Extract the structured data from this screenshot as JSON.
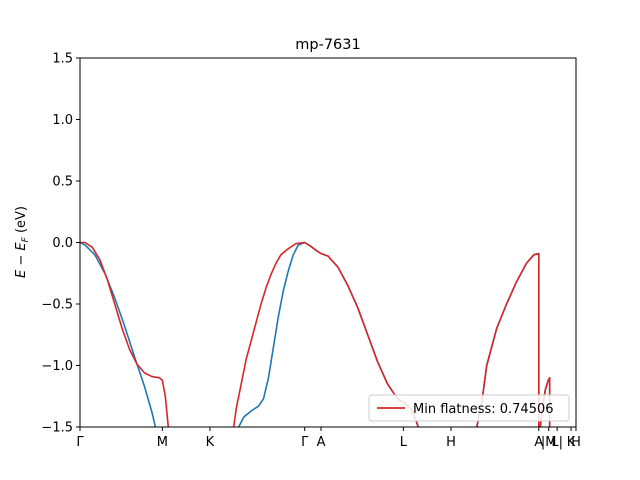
{
  "chart_data": {
    "type": "line",
    "title": "mp-7631",
    "ylabel": "E − E_F (eV)",
    "ylim": [
      -1.5,
      1.5
    ],
    "yticks": [
      1.5,
      1.0,
      0.5,
      0.0,
      -0.5,
      -1.0,
      -1.5
    ],
    "ytick_labels": [
      "1.5",
      "1.0",
      "0.5",
      "0.0",
      "−0.5",
      "−1.0",
      "−1.5"
    ],
    "xlim": [
      0,
      1
    ],
    "kpoints": [
      {
        "label": "Γ",
        "x": 0.0
      },
      {
        "label": "M",
        "x": 0.166
      },
      {
        "label": "K",
        "x": 0.262
      },
      {
        "label": "Γ",
        "x": 0.453
      },
      {
        "label": "A",
        "x": 0.486
      },
      {
        "label": "L",
        "x": 0.652
      },
      {
        "label": "H",
        "x": 0.748
      },
      {
        "label": "A",
        "x": 0.925
      },
      {
        "label": "|M",
        "x": 0.945
      },
      {
        "label": "L|",
        "x": 0.962
      },
      {
        "label": "K",
        "x": 0.99
      },
      {
        "label": "H",
        "x": 1.0
      }
    ],
    "legend": {
      "text": "Min flatness: 0.74506",
      "position": "lower-right"
    },
    "series": [
      {
        "color": "#1f77b4",
        "segments": [
          [
            [
              0.0,
              0.0
            ],
            [
              0.01,
              -0.02
            ],
            [
              0.03,
              -0.1
            ],
            [
              0.05,
              -0.25
            ],
            [
              0.07,
              -0.45
            ],
            [
              0.09,
              -0.68
            ],
            [
              0.11,
              -0.93
            ],
            [
              0.13,
              -1.17
            ],
            [
              0.145,
              -1.38
            ],
            [
              0.152,
              -1.5
            ]
          ],
          [
            [
              0.32,
              -1.5
            ],
            [
              0.33,
              -1.42
            ],
            [
              0.345,
              -1.37
            ],
            [
              0.36,
              -1.33
            ],
            [
              0.37,
              -1.27
            ],
            [
              0.38,
              -1.1
            ],
            [
              0.39,
              -0.85
            ],
            [
              0.4,
              -0.6
            ],
            [
              0.41,
              -0.39
            ],
            [
              0.42,
              -0.23
            ],
            [
              0.43,
              -0.1
            ],
            [
              0.44,
              -0.02
            ],
            [
              0.453,
              0.0
            ],
            [
              0.465,
              -0.03
            ],
            [
              0.478,
              -0.07
            ],
            [
              0.486,
              -0.09
            ]
          ],
          [
            [
              0.486,
              -0.09
            ],
            [
              0.5,
              -0.11
            ],
            [
              0.52,
              -0.2
            ],
            [
              0.54,
              -0.35
            ],
            [
              0.56,
              -0.53
            ],
            [
              0.58,
              -0.75
            ],
            [
              0.6,
              -0.97
            ],
            [
              0.62,
              -1.15
            ],
            [
              0.64,
              -1.27
            ],
            [
              0.652,
              -1.3
            ],
            [
              0.665,
              -1.34
            ],
            [
              0.675,
              -1.42
            ],
            [
              0.682,
              -1.5
            ]
          ],
          [
            [
              0.8,
              -1.5
            ],
            [
              0.81,
              -1.3
            ],
            [
              0.82,
              -1.0
            ],
            [
              0.84,
              -0.7
            ],
            [
              0.86,
              -0.5
            ],
            [
              0.88,
              -0.32
            ],
            [
              0.9,
              -0.17
            ],
            [
              0.915,
              -0.1
            ],
            [
              0.925,
              -0.09
            ],
            [
              0.925,
              -1.5
            ]
          ],
          [
            [
              0.928,
              -1.5
            ],
            [
              0.932,
              -1.35
            ],
            [
              0.938,
              -1.2
            ],
            [
              0.944,
              -1.12
            ],
            [
              0.947,
              -1.1
            ],
            [
              0.947,
              -1.5
            ]
          ]
        ]
      },
      {
        "color": "#d62728",
        "segments": [
          [
            [
              0.0,
              0.0
            ],
            [
              0.01,
              0.0
            ],
            [
              0.025,
              -0.04
            ],
            [
              0.04,
              -0.14
            ],
            [
              0.055,
              -0.3
            ],
            [
              0.07,
              -0.5
            ],
            [
              0.085,
              -0.7
            ],
            [
              0.1,
              -0.87
            ],
            [
              0.115,
              -0.99
            ],
            [
              0.13,
              -1.06
            ],
            [
              0.145,
              -1.09
            ],
            [
              0.16,
              -1.1
            ],
            [
              0.166,
              -1.12
            ],
            [
              0.172,
              -1.25
            ],
            [
              0.178,
              -1.5
            ]
          ],
          [
            [
              0.31,
              -1.5
            ],
            [
              0.315,
              -1.35
            ],
            [
              0.325,
              -1.15
            ],
            [
              0.335,
              -0.95
            ],
            [
              0.345,
              -0.8
            ],
            [
              0.355,
              -0.65
            ],
            [
              0.365,
              -0.5
            ],
            [
              0.375,
              -0.37
            ],
            [
              0.385,
              -0.26
            ],
            [
              0.395,
              -0.17
            ],
            [
              0.405,
              -0.1
            ],
            [
              0.42,
              -0.05
            ],
            [
              0.435,
              -0.01
            ],
            [
              0.453,
              0.0
            ],
            [
              0.465,
              -0.03
            ],
            [
              0.478,
              -0.07
            ],
            [
              0.486,
              -0.09
            ]
          ],
          [
            [
              0.486,
              -0.09
            ],
            [
              0.5,
              -0.11
            ],
            [
              0.52,
              -0.2
            ],
            [
              0.54,
              -0.35
            ],
            [
              0.56,
              -0.53
            ],
            [
              0.58,
              -0.75
            ],
            [
              0.6,
              -0.97
            ],
            [
              0.62,
              -1.15
            ],
            [
              0.64,
              -1.27
            ],
            [
              0.652,
              -1.3
            ],
            [
              0.665,
              -1.34
            ],
            [
              0.675,
              -1.42
            ],
            [
              0.682,
              -1.5
            ]
          ],
          [
            [
              0.8,
              -1.5
            ],
            [
              0.81,
              -1.3
            ],
            [
              0.82,
              -1.0
            ],
            [
              0.84,
              -0.7
            ],
            [
              0.86,
              -0.5
            ],
            [
              0.88,
              -0.32
            ],
            [
              0.9,
              -0.17
            ],
            [
              0.915,
              -0.1
            ],
            [
              0.925,
              -0.09
            ],
            [
              0.925,
              -1.5
            ]
          ],
          [
            [
              0.928,
              -1.5
            ],
            [
              0.932,
              -1.35
            ],
            [
              0.938,
              -1.2
            ],
            [
              0.944,
              -1.12
            ],
            [
              0.947,
              -1.1
            ],
            [
              0.947,
              -1.5
            ]
          ]
        ]
      }
    ]
  }
}
